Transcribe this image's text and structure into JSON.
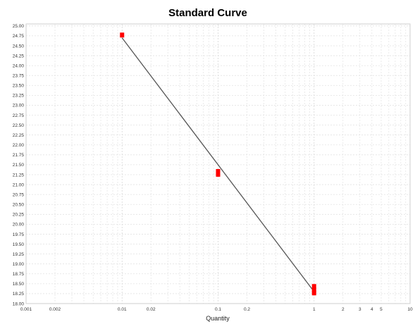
{
  "chart_data": {
    "type": "scatter",
    "title": "Standard Curve",
    "xlabel": "Quantity",
    "ylabel": "",
    "x_scale": "log",
    "xlim": [
      0.001,
      10
    ],
    "ylim": [
      18.0,
      25.05
    ],
    "grid": true,
    "x_ticks": [
      {
        "value": 0.001,
        "label": "0.001"
      },
      {
        "value": 0.002,
        "label": "0.002"
      },
      {
        "value": 0.01,
        "label": "0.01"
      },
      {
        "value": 0.02,
        "label": "0.02"
      },
      {
        "value": 0.1,
        "label": "0.1"
      },
      {
        "value": 0.2,
        "label": "0.2"
      },
      {
        "value": 1,
        "label": "1"
      },
      {
        "value": 2,
        "label": "2"
      },
      {
        "value": 3,
        "label": "3"
      },
      {
        "value": 4,
        "label": "4"
      },
      {
        "value": 5,
        "label": "5"
      },
      {
        "value": 10,
        "label": "10"
      }
    ],
    "y_ticks": [
      {
        "value": 18.0,
        "label": "18.00"
      },
      {
        "value": 18.25,
        "label": "18.25"
      },
      {
        "value": 18.5,
        "label": "18.50"
      },
      {
        "value": 18.75,
        "label": "18.75"
      },
      {
        "value": 19.0,
        "label": "19.00"
      },
      {
        "value": 19.25,
        "label": "19.25"
      },
      {
        "value": 19.5,
        "label": "19.50"
      },
      {
        "value": 19.75,
        "label": "19.75"
      },
      {
        "value": 20.0,
        "label": "20.00"
      },
      {
        "value": 20.25,
        "label": "20.25"
      },
      {
        "value": 20.5,
        "label": "20.50"
      },
      {
        "value": 20.75,
        "label": "20.75"
      },
      {
        "value": 21.0,
        "label": "21.00"
      },
      {
        "value": 21.25,
        "label": "21.25"
      },
      {
        "value": 21.5,
        "label": "21.50"
      },
      {
        "value": 21.75,
        "label": "21.75"
      },
      {
        "value": 22.0,
        "label": "22.00"
      },
      {
        "value": 22.25,
        "label": "22.25"
      },
      {
        "value": 22.5,
        "label": "22.50"
      },
      {
        "value": 22.75,
        "label": "22.75"
      },
      {
        "value": 23.0,
        "label": "23.00"
      },
      {
        "value": 23.25,
        "label": "23.25"
      },
      {
        "value": 23.5,
        "label": "23.50"
      },
      {
        "value": 23.75,
        "label": "23.75"
      },
      {
        "value": 24.0,
        "label": "24.00"
      },
      {
        "value": 24.25,
        "label": "24.25"
      },
      {
        "value": 24.5,
        "label": "24.50"
      },
      {
        "value": 24.75,
        "label": "24.75"
      },
      {
        "value": 25.0,
        "label": "25.00"
      }
    ],
    "series": [
      {
        "color": "#ff0000",
        "marker": "square",
        "points": [
          {
            "x": 0.01,
            "y": 24.77
          },
          {
            "x": 0.1,
            "y": 21.33
          },
          {
            "x": 0.1,
            "y": 21.26
          },
          {
            "x": 1,
            "y": 18.43
          },
          {
            "x": 1,
            "y": 18.34
          },
          {
            "x": 1,
            "y": 18.27
          }
        ]
      }
    ],
    "fit_line": {
      "color": "#555555",
      "points": [
        {
          "x": 0.01,
          "y": 24.7
        },
        {
          "x": 1,
          "y": 18.3
        }
      ]
    }
  }
}
